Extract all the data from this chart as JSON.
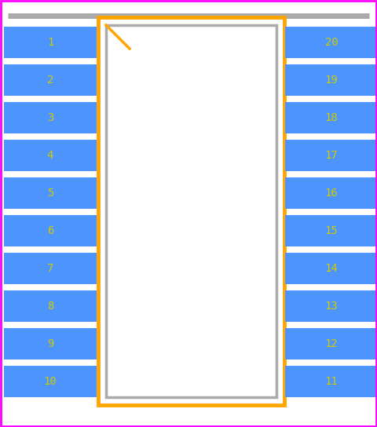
{
  "bg_color": "#ffffff",
  "outer_border_color": "#ff00ff",
  "body_outline_color": "#ffa500",
  "body_fill_color": "#ffffff",
  "body_inner_outline_color": "#aaaaaa",
  "pin_color": "#4d94ff",
  "pin_text_color": "#cccc00",
  "notch_line_color": "#ffa500",
  "num_pins_per_side": 10,
  "left_pins": [
    1,
    2,
    3,
    4,
    5,
    6,
    7,
    8,
    9,
    10
  ],
  "right_pins": [
    20,
    19,
    18,
    17,
    16,
    15,
    14,
    13,
    12,
    11
  ],
  "fig_width": 4.8,
  "fig_height": 5.44,
  "dpi": 100,
  "font_size": 10,
  "notch_size": 30
}
